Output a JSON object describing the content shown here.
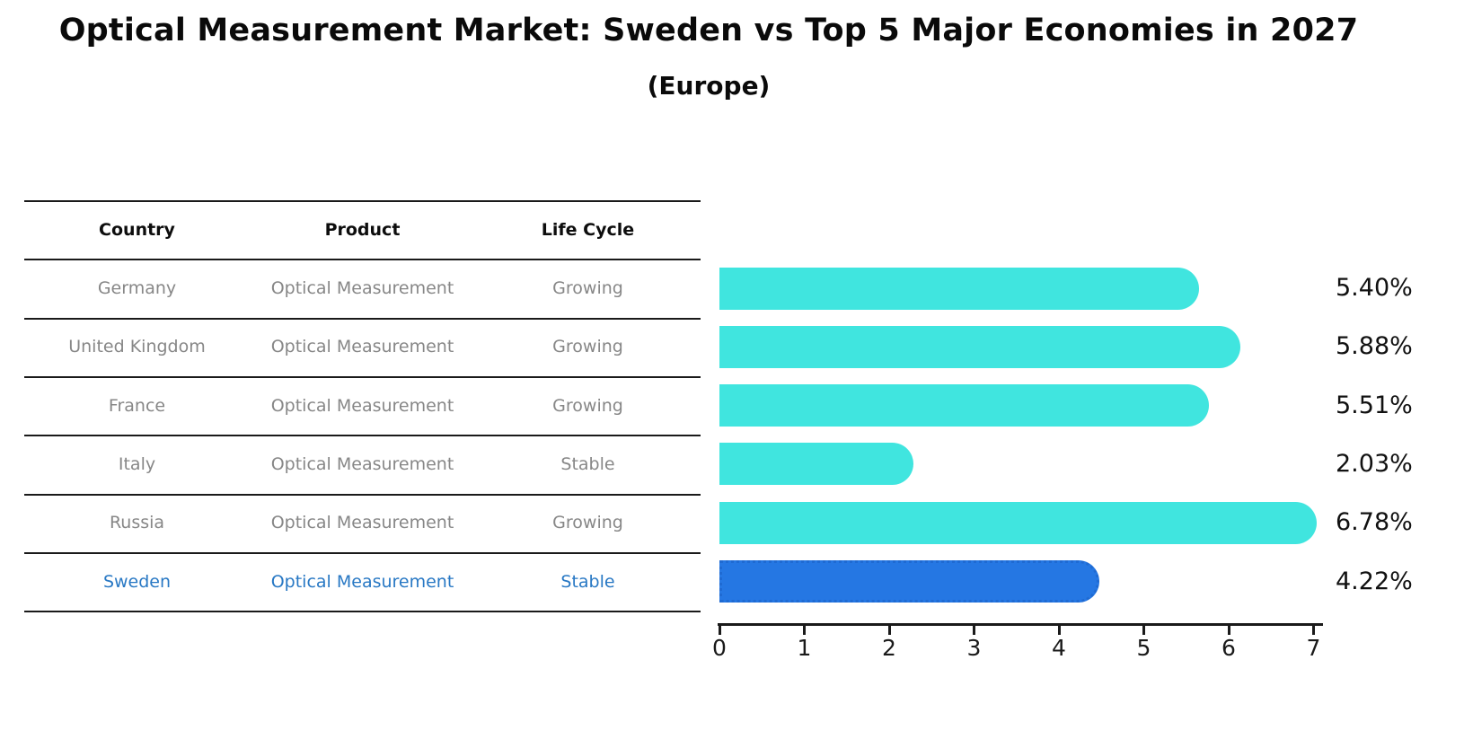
{
  "title": "Optical Measurement Market: Sweden vs Top 5 Major Economies in 2027",
  "subtitle": "(Europe)",
  "colors": {
    "bar_default": "#40E5DF",
    "bar_highlight": "#2577E3",
    "bar_highlight_border": "#1f6ad2",
    "table_text": "#878787",
    "table_header_text": "#0d0d0d",
    "highlight_text": "#2878c4"
  },
  "table": {
    "headers": [
      "Country",
      "Product",
      "Life Cycle"
    ],
    "rows": [
      {
        "country": "Germany",
        "product": "Optical Measurement",
        "life_cycle": "Growing",
        "highlighted": false
      },
      {
        "country": "United Kingdom",
        "product": "Optical Measurement",
        "life_cycle": "Growing",
        "highlighted": false
      },
      {
        "country": "France",
        "product": "Optical Measurement",
        "life_cycle": "Growing",
        "highlighted": false
      },
      {
        "country": "Italy",
        "product": "Optical Measurement",
        "life_cycle": "Stable",
        "highlighted": false
      },
      {
        "country": "Russia",
        "product": "Optical Measurement",
        "life_cycle": "Growing",
        "highlighted": false
      },
      {
        "country": "Sweden",
        "product": "Optical Measurement",
        "life_cycle": "Stable",
        "highlighted": true
      }
    ]
  },
  "chart_data": {
    "type": "bar",
    "orientation": "horizontal",
    "title": "Optical Measurement Market: Sweden vs Top 5 Major Economies in 2027 (Europe)",
    "categories": [
      "Germany",
      "United Kingdom",
      "France",
      "Italy",
      "Russia",
      "Sweden"
    ],
    "values": [
      5.4,
      5.88,
      5.51,
      2.03,
      6.78,
      4.22
    ],
    "labels": [
      "5.40%",
      "5.88%",
      "5.51%",
      "2.03%",
      "6.78%",
      "4.22%"
    ],
    "highlight_category": "Sweden",
    "xlabel": "",
    "ylabel": "",
    "xlim": [
      0,
      7
    ],
    "xticks": [
      0,
      1,
      2,
      3,
      4,
      5,
      6,
      7
    ],
    "grid": false,
    "legend": false
  }
}
